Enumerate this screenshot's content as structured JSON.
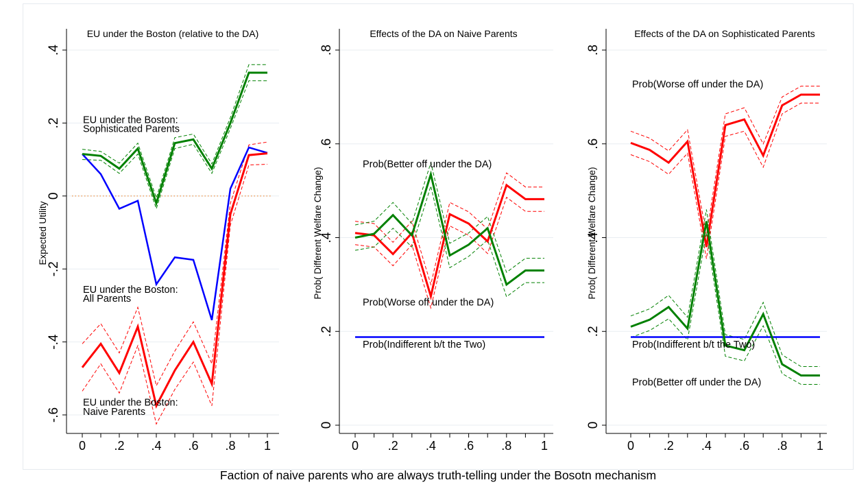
{
  "figure": {
    "caption": "Faction of naive parents who are always truth-telling under the Bosotn mechanism"
  },
  "chart_data": [
    {
      "type": "line",
      "title": "EU under the Boston (relative to the DA)",
      "xlabel": "",
      "ylabel": "Expected Utility",
      "xlim": [
        0,
        1
      ],
      "ylim": [
        -0.65,
        0.42
      ],
      "xticks": [
        0,
        0.1,
        0.2,
        0.3,
        0.4,
        0.5,
        0.6,
        0.7,
        0.8,
        0.9,
        1
      ],
      "xtick_labels": [
        "0",
        "",
        ".2",
        "",
        ".4",
        "",
        ".6",
        "",
        ".8",
        "",
        "1"
      ],
      "yticks": [
        -0.6,
        -0.4,
        -0.2,
        0,
        0.2,
        0.4
      ],
      "ytick_labels": [
        "-.6",
        "-.4",
        "-.2",
        "0",
        ".2",
        ".4"
      ],
      "grid": true,
      "reference_line": {
        "y": 0,
        "color": "#f0a060",
        "style": "dotted"
      },
      "x": [
        0,
        0.1,
        0.2,
        0.3,
        0.4,
        0.5,
        0.6,
        0.7,
        0.8,
        0.9,
        1
      ],
      "series": [
        {
          "color": "#008000",
          "width": 3,
          "values": [
            0.115,
            0.11,
            0.075,
            0.13,
            -0.02,
            0.145,
            0.155,
            0.075,
            0.2,
            0.338,
            0.338
          ]
        },
        {
          "color": "#008000",
          "width": 1,
          "dash": true,
          "values": [
            0.128,
            0.122,
            0.09,
            0.145,
            -0.005,
            0.16,
            0.17,
            0.088,
            0.215,
            0.36,
            0.36
          ]
        },
        {
          "color": "#008000",
          "width": 1,
          "dash": true,
          "values": [
            0.1,
            0.098,
            0.062,
            0.115,
            -0.035,
            0.13,
            0.142,
            0.062,
            0.185,
            0.316,
            0.316
          ]
        },
        {
          "color": "#0000ff",
          "width": 2.5,
          "values": [
            0.115,
            0.06,
            -0.035,
            -0.013,
            -0.242,
            -0.168,
            -0.175,
            -0.34,
            0.02,
            0.133,
            0.118
          ]
        },
        {
          "color": "#ff0000",
          "width": 3,
          "values": [
            -0.47,
            -0.405,
            -0.485,
            -0.358,
            -0.575,
            -0.478,
            -0.4,
            -0.515,
            -0.05,
            0.112,
            0.117
          ]
        },
        {
          "color": "#ff0000",
          "width": 1,
          "dash": true,
          "values": [
            -0.405,
            -0.35,
            -0.43,
            -0.305,
            -0.52,
            -0.425,
            -0.345,
            -0.46,
            -0.02,
            0.14,
            0.148
          ]
        },
        {
          "color": "#ff0000",
          "width": 1,
          "dash": true,
          "values": [
            -0.535,
            -0.46,
            -0.54,
            -0.41,
            -0.625,
            -0.53,
            -0.455,
            -0.575,
            -0.08,
            0.085,
            0.087
          ]
        }
      ],
      "annotations": [
        {
          "text": "EU under the Boston:",
          "x": 0.0,
          "y": 0.2
        },
        {
          "text": "Sophisticated Parents",
          "x": 0.0,
          "y": 0.175
        },
        {
          "text": "EU under the Boston:",
          "x": 0.0,
          "y": -0.265
        },
        {
          "text": "All Parents",
          "x": 0.0,
          "y": -0.29
        },
        {
          "text": "EU under the Boston:",
          "x": 0.0,
          "y": -0.575
        },
        {
          "text": "Naive Parents",
          "x": 0.0,
          "y": -0.6
        }
      ]
    },
    {
      "type": "line",
      "title": "Effects of the DA on Naive Parents",
      "xlabel": "",
      "ylabel": "Prob( Different Welfare Change)",
      "xlim": [
        0,
        1
      ],
      "ylim": [
        -0.01,
        0.82
      ],
      "xticks": [
        0,
        0.1,
        0.2,
        0.3,
        0.4,
        0.5,
        0.6,
        0.7,
        0.8,
        0.9,
        1
      ],
      "xtick_labels": [
        "0",
        "",
        ".2",
        "",
        ".4",
        "",
        ".6",
        "",
        ".8",
        "",
        "1"
      ],
      "yticks": [
        0,
        0.2,
        0.4,
        0.6,
        0.8
      ],
      "ytick_labels": [
        "0",
        ".2",
        ".4",
        ".6",
        ".8"
      ],
      "grid": true,
      "x": [
        0,
        0.1,
        0.2,
        0.3,
        0.4,
        0.5,
        0.6,
        0.7,
        0.8,
        0.9,
        1
      ],
      "series": [
        {
          "color": "#0000ff",
          "width": 2.5,
          "values": [
            0.188,
            0.188,
            0.188,
            0.188,
            0.188,
            0.188,
            0.188,
            0.188,
            0.188,
            0.188,
            0.188
          ]
        },
        {
          "color": "#ff0000",
          "width": 3,
          "values": [
            0.41,
            0.405,
            0.365,
            0.41,
            0.275,
            0.45,
            0.43,
            0.392,
            0.512,
            0.482,
            0.482
          ]
        },
        {
          "color": "#ff0000",
          "width": 1,
          "dash": true,
          "values": [
            0.435,
            0.43,
            0.39,
            0.435,
            0.3,
            0.475,
            0.455,
            0.418,
            0.538,
            0.508,
            0.508
          ]
        },
        {
          "color": "#ff0000",
          "width": 1,
          "dash": true,
          "values": [
            0.385,
            0.38,
            0.34,
            0.385,
            0.25,
            0.425,
            0.405,
            0.366,
            0.486,
            0.456,
            0.456
          ]
        },
        {
          "color": "#008000",
          "width": 3,
          "values": [
            0.4,
            0.408,
            0.448,
            0.405,
            0.535,
            0.362,
            0.385,
            0.42,
            0.3,
            0.33,
            0.33
          ]
        },
        {
          "color": "#008000",
          "width": 1,
          "dash": true,
          "values": [
            0.427,
            0.435,
            0.475,
            0.43,
            0.56,
            0.388,
            0.41,
            0.445,
            0.326,
            0.356,
            0.356
          ]
        },
        {
          "color": "#008000",
          "width": 1,
          "dash": true,
          "values": [
            0.373,
            0.38,
            0.42,
            0.38,
            0.51,
            0.336,
            0.36,
            0.395,
            0.274,
            0.304,
            0.304
          ]
        }
      ],
      "annotations": [
        {
          "text": "Prob(Better off under the DA)",
          "x": 0.0,
          "y": 0.55
        },
        {
          "text": "Prob(Worse off under the DA)",
          "x": 0.0,
          "y": 0.255
        },
        {
          "text": "Prob(Indifferent b/t the Two)",
          "x": 0.0,
          "y": 0.165
        }
      ]
    },
    {
      "type": "line",
      "title": "Effects of the DA on Sophisticated Parents",
      "xlabel": "",
      "ylabel": "Prob( Different Welfare Change)",
      "xlim": [
        0,
        1
      ],
      "ylim": [
        -0.01,
        0.82
      ],
      "xticks": [
        0,
        0.1,
        0.2,
        0.3,
        0.4,
        0.5,
        0.6,
        0.7,
        0.8,
        0.9,
        1
      ],
      "xtick_labels": [
        "0",
        "",
        ".2",
        "",
        ".4",
        "",
        ".6",
        "",
        ".8",
        "",
        "1"
      ],
      "yticks": [
        0,
        0.2,
        0.4,
        0.6,
        0.8
      ],
      "ytick_labels": [
        "0",
        ".2",
        ".4",
        ".6",
        ".8"
      ],
      "grid": true,
      "x": [
        0,
        0.1,
        0.2,
        0.3,
        0.4,
        0.5,
        0.6,
        0.7,
        0.8,
        0.9,
        1
      ],
      "series": [
        {
          "color": "#0000ff",
          "width": 2.5,
          "values": [
            0.188,
            0.188,
            0.188,
            0.188,
            0.188,
            0.188,
            0.188,
            0.188,
            0.188,
            0.188,
            0.188
          ]
        },
        {
          "color": "#ff0000",
          "width": 3,
          "values": [
            0.602,
            0.587,
            0.56,
            0.605,
            0.38,
            0.64,
            0.652,
            0.575,
            0.682,
            0.705,
            0.705
          ]
        },
        {
          "color": "#ff0000",
          "width": 1,
          "dash": true,
          "values": [
            0.627,
            0.612,
            0.585,
            0.63,
            0.405,
            0.664,
            0.677,
            0.6,
            0.7,
            0.723,
            0.723
          ]
        },
        {
          "color": "#ff0000",
          "width": 1,
          "dash": true,
          "values": [
            0.577,
            0.562,
            0.535,
            0.58,
            0.355,
            0.616,
            0.627,
            0.55,
            0.664,
            0.687,
            0.687
          ]
        },
        {
          "color": "#008000",
          "width": 3,
          "values": [
            0.21,
            0.225,
            0.252,
            0.206,
            0.435,
            0.17,
            0.16,
            0.237,
            0.13,
            0.106,
            0.106
          ]
        },
        {
          "color": "#008000",
          "width": 1,
          "dash": true,
          "values": [
            0.233,
            0.248,
            0.277,
            0.23,
            0.46,
            0.193,
            0.183,
            0.262,
            0.15,
            0.125,
            0.125
          ]
        },
        {
          "color": "#008000",
          "width": 1,
          "dash": true,
          "values": [
            0.187,
            0.202,
            0.227,
            0.182,
            0.41,
            0.147,
            0.137,
            0.212,
            0.11,
            0.087,
            0.087
          ]
        }
      ],
      "annotations": [
        {
          "text": "Prob(Worse off under the DA)",
          "x": 0.0,
          "y": 0.72
        },
        {
          "text": "Prob(Indifferent b/t the Two)",
          "x": 0.0,
          "y": 0.165
        },
        {
          "text": "Prob(Better off under the DA)",
          "x": 0.0,
          "y": 0.085
        }
      ]
    }
  ]
}
